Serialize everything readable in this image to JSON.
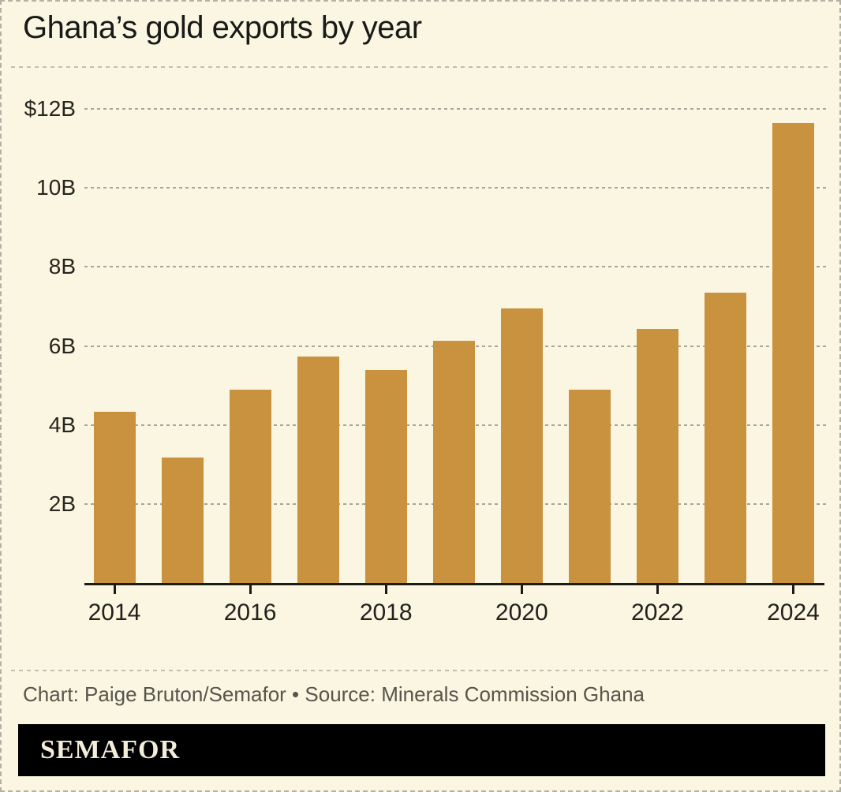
{
  "title": "Ghana’s gold exports by year",
  "chart_data": {
    "type": "bar",
    "title": "Ghana’s gold exports by year",
    "unit": "billions of USD",
    "categories": [
      2014,
      2015,
      2016,
      2017,
      2018,
      2019,
      2020,
      2021,
      2022,
      2023,
      2024
    ],
    "values": [
      4.35,
      3.2,
      4.9,
      5.75,
      5.4,
      6.15,
      6.95,
      4.9,
      6.45,
      7.35,
      11.64
    ],
    "xlabel": "",
    "ylabel": "",
    "ylim": [
      0,
      12.4
    ],
    "grid": "horizontal-dashed",
    "legend": "none",
    "bar_color": "#c8923f",
    "y_axis_ticks": [
      {
        "label": "$12B",
        "value": 12
      },
      {
        "label": "10B",
        "value": 10
      },
      {
        "label": "8B",
        "value": 8
      },
      {
        "label": "6B",
        "value": 6
      },
      {
        "label": "4B",
        "value": 4
      },
      {
        "label": "2B",
        "value": 2
      }
    ],
    "x_axis_tick_years": [
      2014,
      2016,
      2018,
      2020,
      2022,
      2024
    ]
  },
  "footer": {
    "credit": "Chart: Paige Bruton/Semafor • Source: Minerals Commission Ghana",
    "logo": "SEMAFOR"
  },
  "colors": {
    "background": "#faf6e1",
    "bar": "#c8923f",
    "axis_line": "#1b1b18",
    "gridline": "#a7a599",
    "title_text": "#191917",
    "credit_text": "#56554c",
    "logo_background": "#000000",
    "logo_text": "#f3edda"
  }
}
